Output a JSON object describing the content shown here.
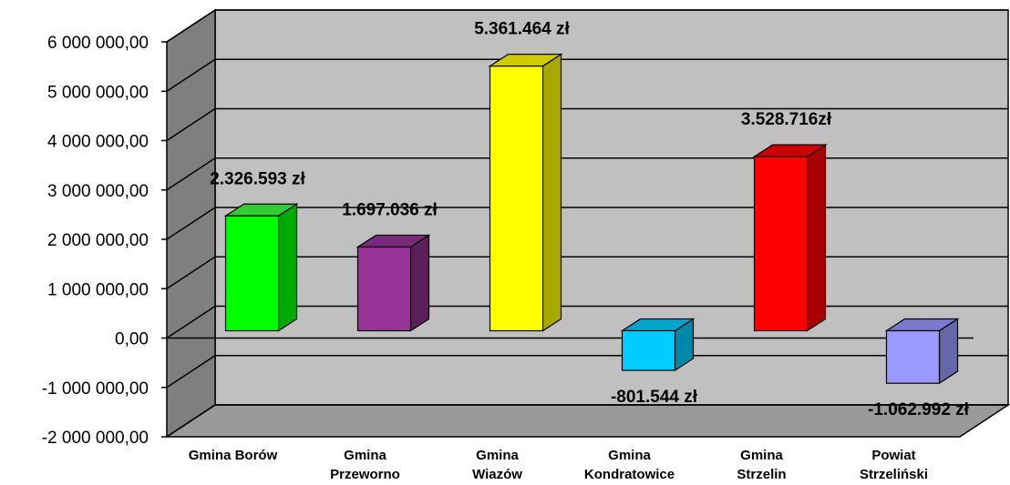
{
  "chart_data": {
    "type": "bar",
    "title": "",
    "xlabel": "",
    "ylabel": "",
    "grid": true,
    "ylim": [
      -2000000,
      6000000
    ],
    "y_ticks": [
      6000000,
      5000000,
      4000000,
      3000000,
      2000000,
      1000000,
      0,
      -1000000,
      -2000000
    ],
    "y_tick_labels": [
      "6 000 000,00",
      "5 000 000,00",
      "4 000 000,00",
      "3 000 000,00",
      "2 000 000,00",
      "1 000 000,00",
      "0,00",
      "-1 000 000,00",
      "-2 000 000,00"
    ],
    "categories": [
      [
        "Gmina Borów"
      ],
      [
        "Gmina",
        "Przeworno"
      ],
      [
        "Gmina",
        "Wiazów"
      ],
      [
        "Gmina",
        "Kondratowice"
      ],
      [
        "Gmina",
        "Strzelin"
      ],
      [
        "Powiat",
        "Strzeliński"
      ]
    ],
    "values": [
      2326593,
      1697036,
      5361464,
      -801544,
      3528716,
      -1062992
    ],
    "data_labels": [
      "2.326.593 zł",
      "1.697.036 zł",
      "5.361.464 zł",
      "-801.544 zł",
      "3.528.716zł",
      "-1.062.992 zł"
    ],
    "colors": [
      {
        "front": "#00ff00",
        "side": "#00aa00",
        "top": "#33cc33"
      },
      {
        "front": "#993399",
        "side": "#5c1f5c",
        "top": "#7a297a"
      },
      {
        "front": "#ffff00",
        "side": "#a8a800",
        "top": "#cccc00"
      },
      {
        "front": "#00ccff",
        "side": "#0088aa",
        "top": "#00a3cc"
      },
      {
        "front": "#ff0000",
        "side": "#a80000",
        "top": "#cc0000"
      },
      {
        "front": "#9999ff",
        "side": "#6666aa",
        "top": "#7a7acc"
      }
    ],
    "wall_color": "#c0c0c0",
    "floor_color": "#9a9a9a",
    "side_wall_color": "#7f7f7f"
  }
}
